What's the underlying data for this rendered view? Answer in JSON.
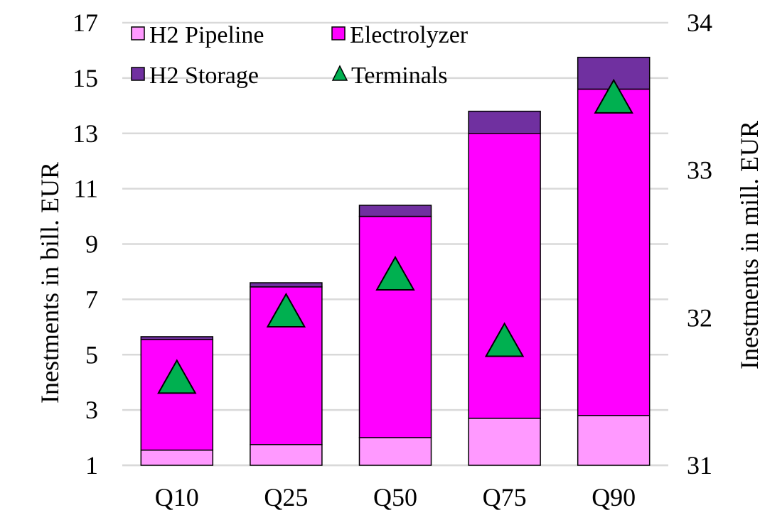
{
  "chart_data": {
    "type": "bar",
    "stacked": true,
    "categories": [
      "Q10",
      "Q25",
      "Q50",
      "Q75",
      "Q90"
    ],
    "series": [
      {
        "name": "H2 Pipeline",
        "axis": "left",
        "values": [
          0.55,
          0.75,
          1.0,
          1.7,
          1.8
        ],
        "color": "#ff99ff"
      },
      {
        "name": "Electrolyzer",
        "axis": "left",
        "values": [
          4.0,
          5.7,
          8.0,
          10.3,
          11.8
        ],
        "color": "#ff00ff"
      },
      {
        "name": "H2 Storage",
        "axis": "left",
        "values": [
          0.1,
          0.15,
          0.4,
          0.8,
          1.15
        ],
        "color": "#7030a0"
      },
      {
        "name": "Terminals",
        "axis": "right",
        "type": "marker",
        "values": [
          31.6,
          32.05,
          32.3,
          31.85,
          33.5
        ],
        "color": "#00b050"
      }
    ],
    "y_left": {
      "label": "Inestments in bill. EUR",
      "ylim": [
        1,
        17
      ],
      "ticks": [
        "1",
        "3",
        "5",
        "7",
        "9",
        "11",
        "13",
        "15",
        "17"
      ]
    },
    "y_right": {
      "label": "Inestments in mill. EUR",
      "ylim": [
        31,
        34
      ],
      "ticks": [
        "31",
        "32",
        "33",
        "34"
      ]
    },
    "grid": true,
    "legend_position": "top-left"
  }
}
